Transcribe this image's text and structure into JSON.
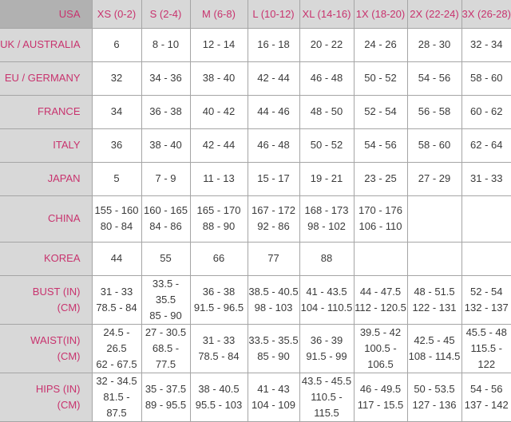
{
  "colors": {
    "accent": "#c8336e",
    "header_bg": "#d8d8d8",
    "corner_bg": "#b1b1b1",
    "border": "#a5a5a5",
    "text": "#3a3a3a"
  },
  "chart_data": {
    "type": "table",
    "corner_label": "USA",
    "columns": [
      "XS (0-2)",
      "S (2-4)",
      "M (6-8)",
      "L (10-12)",
      "XL (14-16)",
      "1X (18-20)",
      "2X (22-24)",
      "3X (26-28)"
    ],
    "rows": [
      {
        "label_lines": [
          "UK / AUSTRALIA"
        ],
        "cells": [
          [
            "6"
          ],
          [
            "8 - 10"
          ],
          [
            "12 - 14"
          ],
          [
            "16 - 18"
          ],
          [
            "20 - 22"
          ],
          [
            "24 - 26"
          ],
          [
            "28 - 30"
          ],
          [
            "32 - 34"
          ]
        ]
      },
      {
        "label_lines": [
          "EU / GERMANY"
        ],
        "cells": [
          [
            "32"
          ],
          [
            "34 - 36"
          ],
          [
            "38 - 40"
          ],
          [
            "42 - 44"
          ],
          [
            "46 - 48"
          ],
          [
            "50 - 52"
          ],
          [
            "54 - 56"
          ],
          [
            "58 - 60"
          ]
        ]
      },
      {
        "label_lines": [
          "FRANCE"
        ],
        "cells": [
          [
            "34"
          ],
          [
            "36 - 38"
          ],
          [
            "40 - 42"
          ],
          [
            "44 - 46"
          ],
          [
            "48 - 50"
          ],
          [
            "52 - 54"
          ],
          [
            "56 - 58"
          ],
          [
            "60 - 62"
          ]
        ]
      },
      {
        "label_lines": [
          "ITALY"
        ],
        "cells": [
          [
            "36"
          ],
          [
            "38 - 40"
          ],
          [
            "42 - 44"
          ],
          [
            "46 - 48"
          ],
          [
            "50 - 52"
          ],
          [
            "54 - 56"
          ],
          [
            "58 - 60"
          ],
          [
            "62 - 64"
          ]
        ]
      },
      {
        "label_lines": [
          "JAPAN"
        ],
        "cells": [
          [
            "5"
          ],
          [
            "7 - 9"
          ],
          [
            "11 - 13"
          ],
          [
            "15 - 17"
          ],
          [
            "19 - 21"
          ],
          [
            "23 - 25"
          ],
          [
            "27 - 29"
          ],
          [
            "31 - 33"
          ]
        ]
      },
      {
        "label_lines": [
          "CHINA"
        ],
        "cells": [
          [
            "155 - 160",
            "80 - 84"
          ],
          [
            "160 - 165",
            "84 - 86"
          ],
          [
            "165 - 170",
            "88 - 90"
          ],
          [
            "167 - 172",
            "92 - 86"
          ],
          [
            "168 - 173",
            "98 - 102"
          ],
          [
            "170 - 176",
            "106 - 110"
          ],
          [],
          []
        ]
      },
      {
        "label_lines": [
          "KOREA"
        ],
        "cells": [
          [
            "44"
          ],
          [
            "55"
          ],
          [
            "66"
          ],
          [
            "77"
          ],
          [
            "88"
          ],
          [],
          [],
          []
        ]
      },
      {
        "label_lines": [
          "BUST (IN)",
          "(CM)"
        ],
        "cells": [
          [
            "31 - 33",
            "78.5 - 84"
          ],
          [
            "33.5 - 35.5",
            "85 - 90"
          ],
          [
            "36 - 38",
            "91.5 - 96.5"
          ],
          [
            "38.5 - 40.5",
            "98 - 103"
          ],
          [
            "41 - 43.5",
            "104 - 110.5"
          ],
          [
            "44 - 47.5",
            "112 - 120.5"
          ],
          [
            "48 - 51.5",
            "122 - 131"
          ],
          [
            "52 - 54",
            "132 - 137"
          ]
        ]
      },
      {
        "label_lines": [
          "WAIST(IN)",
          "(CM)"
        ],
        "cells": [
          [
            "24.5 - 26.5",
            "62 - 67.5"
          ],
          [
            "27 - 30.5",
            "68.5 - 77.5"
          ],
          [
            "31 - 33",
            "78.5 - 84"
          ],
          [
            "33.5 - 35.5",
            "85 - 90"
          ],
          [
            "36 - 39",
            "91.5 - 99"
          ],
          [
            "39.5 - 42",
            "100.5 - 106.5"
          ],
          [
            "42.5 - 45",
            "108 - 114.5"
          ],
          [
            "45.5 - 48",
            "115.5 - 122"
          ]
        ]
      },
      {
        "label_lines": [
          "HIPS (IN)",
          "(CM)"
        ],
        "cells": [
          [
            "32 - 34.5",
            "81.5 - 87.5"
          ],
          [
            "35 - 37.5",
            "89 - 95.5"
          ],
          [
            "38 - 40.5",
            "95.5 - 103"
          ],
          [
            "41 - 43",
            "104 - 109"
          ],
          [
            "43.5 - 45.5",
            "110.5 - 115.5"
          ],
          [
            "46 - 49.5",
            "117 - 15.5"
          ],
          [
            "50 - 53.5",
            "127 - 136"
          ],
          [
            "54 - 56",
            "137 - 142"
          ]
        ]
      }
    ]
  }
}
